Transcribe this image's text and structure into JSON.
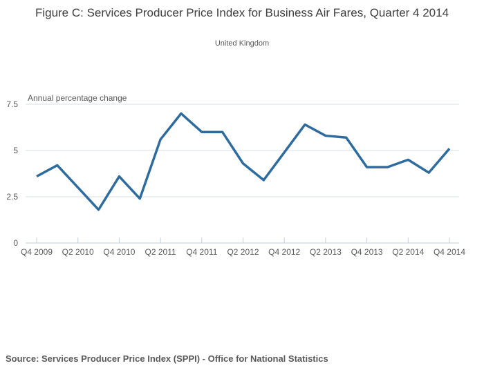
{
  "header": {
    "title": "Figure C: Services Producer Price Index for Business Air Fares, Quarter 4 2014",
    "subtitle": "United Kingdom"
  },
  "footer": {
    "source": "Source: Services Producer Price Index (SPPI) - Office for National Statistics"
  },
  "colors": {
    "line": "#2e6b9e",
    "grid": "#dadfe4",
    "axis": "#c3cedb",
    "tick": "#c3cedb",
    "label_text": "#595959",
    "title_text": "#3f3f3f"
  },
  "chart_data": {
    "type": "line",
    "title": "Figure C: Services Producer Price Index for Business Air Fares, Quarter 4 2014",
    "subtitle": "United Kingdom",
    "axis_label": "Annual percentage change",
    "x": [
      "Q4 2009",
      "Q1 2010",
      "Q2 2010",
      "Q3 2010",
      "Q4 2010",
      "Q1 2011",
      "Q2 2011",
      "Q3 2011",
      "Q4 2011",
      "Q1 2012",
      "Q2 2012",
      "Q3 2012",
      "Q4 2012",
      "Q1 2013",
      "Q2 2013",
      "Q3 2013",
      "Q4 2013",
      "Q1 2014",
      "Q2 2014",
      "Q3 2014",
      "Q4 2014"
    ],
    "series": [
      {
        "name": "Business Air Fares annual percentage change",
        "values": [
          3.6,
          4.2,
          3.0,
          1.8,
          3.6,
          2.4,
          5.6,
          7.0,
          6.0,
          6.0,
          4.3,
          3.4,
          4.9,
          6.4,
          5.8,
          5.7,
          4.1,
          4.1,
          4.5,
          3.8,
          5.1
        ]
      }
    ],
    "x_tick_labels": [
      "Q4 2009",
      "Q2 2010",
      "Q4 2010",
      "Q2 2011",
      "Q4 2011",
      "Q2 2012",
      "Q4 2012",
      "Q2 2013",
      "Q4 2013",
      "Q2 2014",
      "Q4 2014"
    ],
    "x_tick_every": 2,
    "y_ticks": [
      0,
      2.5,
      5,
      7.5
    ],
    "y_tick_labels": [
      "0",
      "2.5",
      "5",
      "7.5"
    ],
    "ylim": [
      0,
      7.5
    ],
    "grid": "horizontal",
    "legend": "none"
  }
}
